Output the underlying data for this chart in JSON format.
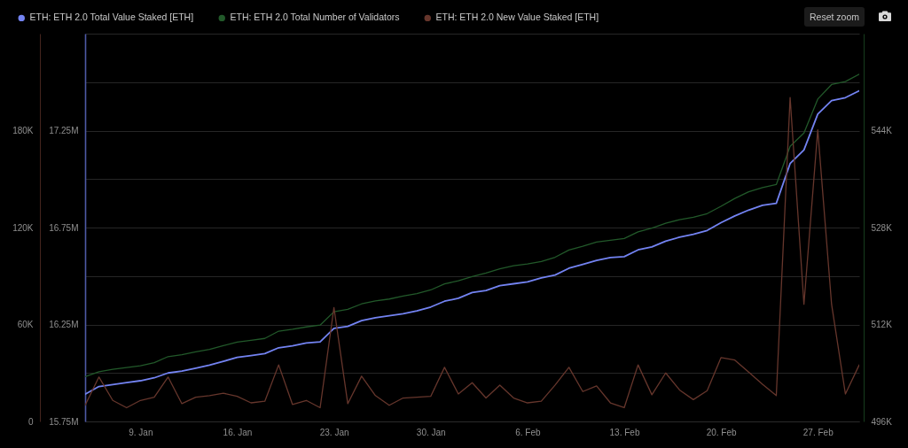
{
  "chart_data": {
    "type": "line",
    "x": [
      "--01-05",
      "--01-06",
      "--01-07",
      "--01-08",
      "--01-09",
      "--01-10",
      "--01-11",
      "--01-12",
      "--01-13",
      "--01-14",
      "--01-15",
      "--01-16",
      "--01-17",
      "--01-18",
      "--01-19",
      "--01-20",
      "--01-21",
      "--01-22",
      "--01-23",
      "--01-24",
      "--01-25",
      "--01-26",
      "--01-27",
      "--01-28",
      "--01-29",
      "--01-30",
      "--01-31",
      "--02-01",
      "--02-02",
      "--02-03",
      "--02-04",
      "--02-05",
      "--02-06",
      "--02-07",
      "--02-08",
      "--02-09",
      "--02-10",
      "--02-11",
      "--02-12",
      "--02-13",
      "--02-14",
      "--02-15",
      "--02-16",
      "--02-17",
      "--02-18",
      "--02-19",
      "--02-20",
      "--02-21",
      "--02-22",
      "--02-23",
      "--02-24",
      "--02-25",
      "--02-26",
      "--02-27",
      "--02-28",
      "--03-01",
      "--03-02"
    ],
    "series": [
      {
        "name": "ETH: ETH 2.0 Total Value Staked [ETH]",
        "color": "#7383f2",
        "values": [
          15890000,
          15930000,
          15940000,
          15950000,
          15960000,
          15975000,
          16000000,
          16010000,
          16025000,
          16040000,
          16060000,
          16080000,
          16090000,
          16100000,
          16130000,
          16140000,
          16155000,
          16160000,
          16230000,
          16240000,
          16270000,
          16285000,
          16295000,
          16305000,
          16320000,
          16340000,
          16370000,
          16385000,
          16415000,
          16425000,
          16450000,
          16460000,
          16470000,
          16490000,
          16505000,
          16540000,
          16560000,
          16580000,
          16595000,
          16600000,
          16635000,
          16650000,
          16680000,
          16700000,
          16715000,
          16735000,
          16775000,
          16810000,
          16840000,
          16865000,
          16875000,
          17080000,
          17150000,
          17335000,
          17405000,
          17420000,
          17455000
        ]
      },
      {
        "name": "ETH: ETH 2.0 Total Number of Validators",
        "color": "#22592a",
        "axis": "y2",
        "values": [
          503400,
          504200,
          504600,
          504900,
          505200,
          505700,
          506700,
          507000,
          507500,
          507900,
          508500,
          509100,
          509400,
          509700,
          510900,
          511200,
          511600,
          511900,
          514100,
          514500,
          515400,
          515900,
          516200,
          516700,
          517100,
          517700,
          518700,
          519200,
          519900,
          520500,
          521200,
          521700,
          522000,
          522400,
          523100,
          524300,
          524900,
          525600,
          525900,
          526200,
          527300,
          527900,
          528700,
          529300,
          529700,
          530300,
          531500,
          532800,
          533900,
          534600,
          535100,
          541400,
          543600,
          549200,
          551600,
          552100,
          553300
        ]
      },
      {
        "name": "ETH: ETH 2.0 New Value Staked [ETH]",
        "color": "#66362c",
        "axis": "y3",
        "values": [
          10000,
          27500,
          13000,
          8500,
          13000,
          15000,
          27500,
          11000,
          15000,
          16000,
          17500,
          15500,
          11500,
          12500,
          35000,
          10500,
          13000,
          8500,
          70500,
          11000,
          28000,
          16000,
          10000,
          14500,
          15000,
          15500,
          33500,
          17000,
          24000,
          14500,
          22500,
          14500,
          11500,
          12500,
          22500,
          33500,
          18500,
          22000,
          11500,
          8500,
          35000,
          16500,
          30000,
          19500,
          13500,
          19000,
          39500,
          38000,
          30500,
          23000,
          16000,
          200500,
          72500,
          180500,
          72500,
          17000,
          35000
        ]
      }
    ],
    "xlim": [
      "--01-05",
      "--03-02"
    ],
    "xticks": [
      {
        "value": "--01-09",
        "label": "9. Jan"
      },
      {
        "value": "--01-16",
        "label": "16. Jan"
      },
      {
        "value": "--01-23",
        "label": "23. Jan"
      },
      {
        "value": "--01-30",
        "label": "30. Jan"
      },
      {
        "value": "--02-06",
        "label": "6. Feb"
      },
      {
        "value": "--02-13",
        "label": "13. Feb"
      },
      {
        "value": "--02-20",
        "label": "20. Feb"
      },
      {
        "value": "--02-27",
        "label": "27. Feb"
      }
    ],
    "ylim": [
      15750000,
      17750000
    ],
    "yticks": [
      {
        "value": 15750000,
        "label": "15.75M"
      },
      {
        "value": 16000000,
        "label": null
      },
      {
        "value": 16250000,
        "label": "16.25M"
      },
      {
        "value": 16500000,
        "label": null
      },
      {
        "value": 16750000,
        "label": "16.75M"
      },
      {
        "value": 17000000,
        "label": null
      },
      {
        "value": 17250000,
        "label": "17.25M"
      },
      {
        "value": 17500000,
        "label": null
      },
      {
        "value": 17750000,
        "label": null
      }
    ],
    "y2lim": [
      496000,
      560000
    ],
    "y2ticks": [
      {
        "value": 496000,
        "label": "496K"
      },
      {
        "value": 512000,
        "label": "512K"
      },
      {
        "value": 528000,
        "label": "528K"
      },
      {
        "value": 544000,
        "label": "544K"
      }
    ],
    "y3lim": [
      0,
      240000
    ],
    "y3ticks": [
      0,
      {
        "value": 60000,
        "label": "60K"
      },
      {
        "value": 120000,
        "label": "120K"
      },
      {
        "value": 180000,
        "label": "180K"
      }
    ],
    "grid": "y",
    "legend": "top left",
    "annotations": [
      "Reset zoom"
    ]
  }
}
